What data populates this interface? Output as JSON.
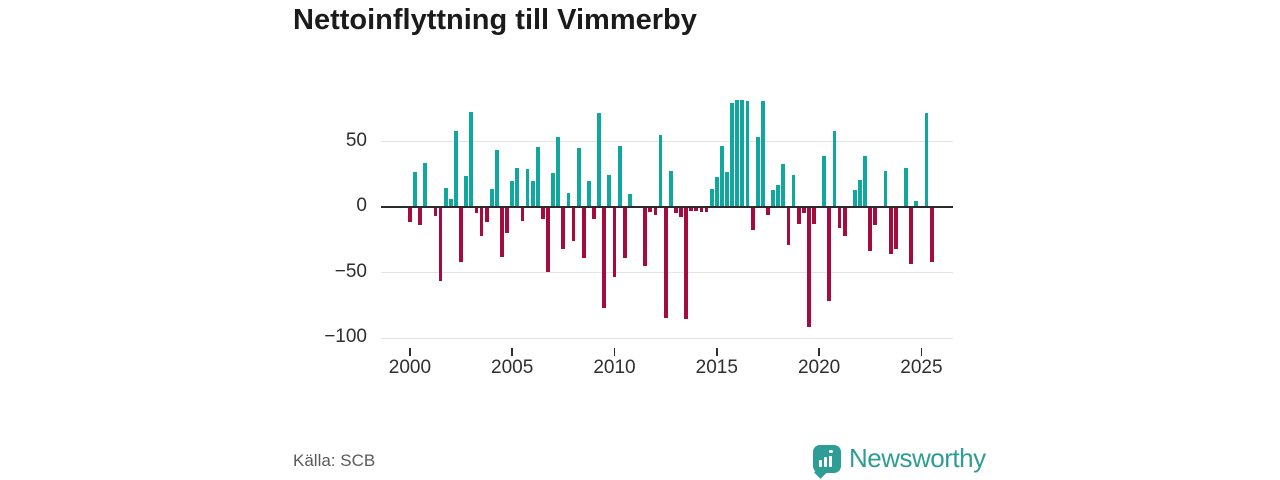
{
  "title": "Nettoinflyttning till Vimmerby",
  "source": "Källa: SCB",
  "branding": {
    "name": "Newsworthy",
    "icon": "newsworthy-speech-bubble-chart-icon"
  },
  "colors": {
    "positive": "#10a79e",
    "negative": "#a50b3d",
    "brand": "#2e9d95",
    "zero_line": "#2b2b2b",
    "gridline": "#e3e3e3",
    "title_text": "#1b1b1b",
    "axis_text": "#2e2e2e",
    "muted_text": "#5a5a5a"
  },
  "chart_data": {
    "type": "bar",
    "title": "Nettoinflyttning till Vimmerby",
    "frequency": "quarterly",
    "start_year": 2000,
    "start_quarter": 1,
    "end_label": "2025 Q3",
    "xlabel": "",
    "ylabel": "",
    "grid": "horizontal",
    "legend": "none",
    "ylim": [
      -108,
      88
    ],
    "y_ticks": [
      50,
      0,
      -50,
      -100
    ],
    "y_tick_labels": [
      "50",
      "0",
      "−50",
      "−100"
    ],
    "x_tick_years": [
      2000,
      2005,
      2010,
      2015,
      2020,
      2025
    ],
    "x_tick_labels": [
      "2000",
      "2005",
      "2010",
      "2015",
      "2020",
      "2025"
    ],
    "values": [
      -11,
      26,
      -13,
      33,
      0,
      -6,
      -56,
      14,
      5,
      57,
      -41,
      23,
      72,
      -4,
      -21,
      -11,
      13,
      43,
      -37,
      -19,
      19,
      29,
      -10,
      28,
      19,
      45,
      -8,
      -49,
      25,
      53,
      -31,
      10,
      -25,
      44,
      -38,
      19,
      -8,
      71,
      -76,
      24,
      -53,
      46,
      -38,
      9,
      0,
      0,
      -44,
      -3,
      -5,
      54,
      -84,
      27,
      -4,
      -7,
      -85,
      -2,
      -2,
      -3,
      -3,
      13,
      22,
      46,
      26,
      79,
      81,
      81,
      80,
      -17,
      53,
      80,
      -5,
      12,
      16,
      32,
      -28,
      24,
      -12,
      -4,
      -91,
      -12,
      0,
      38,
      -71,
      57,
      -15,
      -21,
      0,
      12,
      20,
      38,
      -33,
      -13,
      0,
      27,
      -35,
      -31,
      0,
      29,
      -43,
      4,
      0,
      71,
      -41
    ]
  }
}
